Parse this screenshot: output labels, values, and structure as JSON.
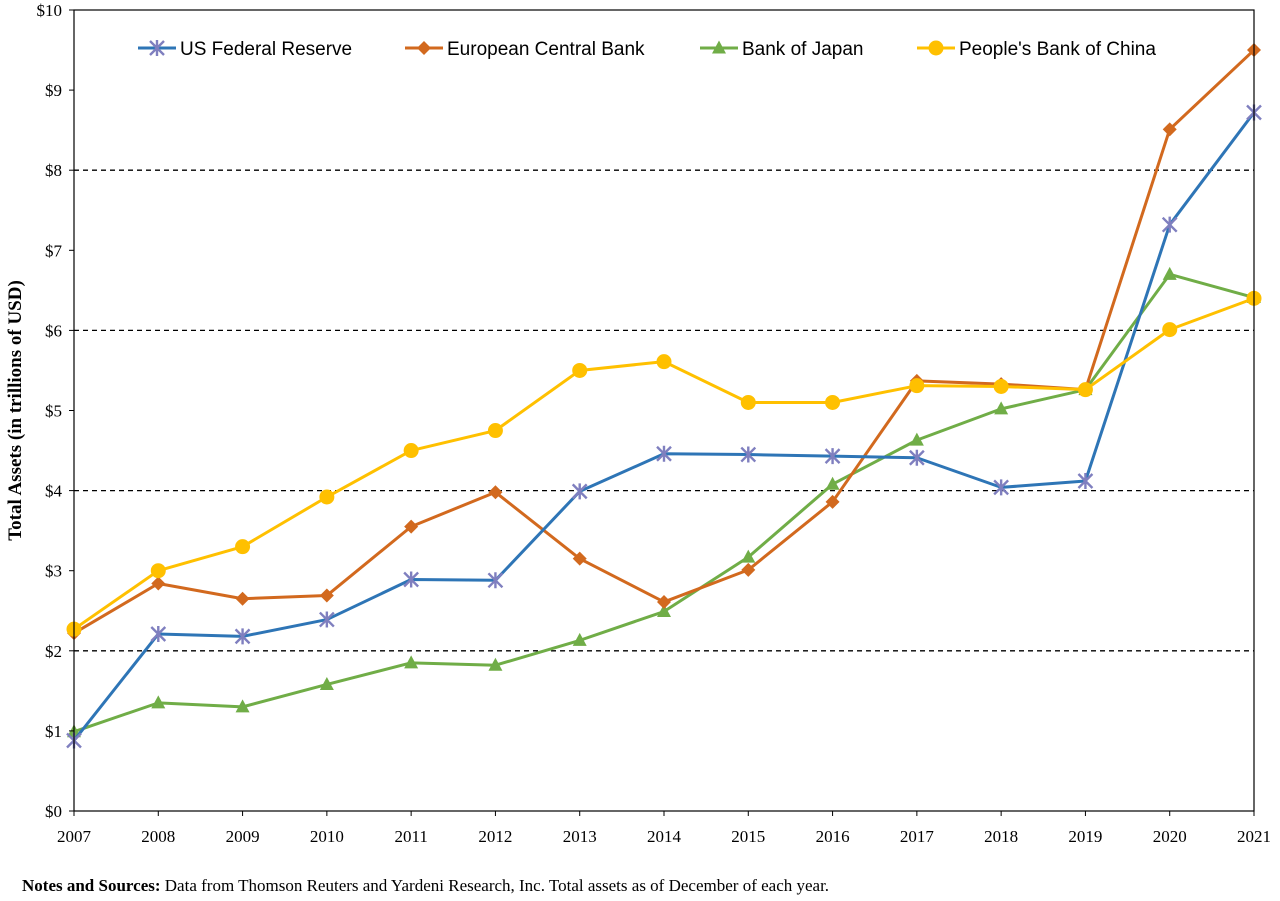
{
  "chart_data": {
    "type": "line",
    "title": "",
    "xlabel": "",
    "ylabel": "Total Assets (in trillions of USD)",
    "x": [
      "2007",
      "2008",
      "2009",
      "2010",
      "2011",
      "2012",
      "2013",
      "2014",
      "2015",
      "2016",
      "2017",
      "2018",
      "2019",
      "2020",
      "2021"
    ],
    "ylim": [
      0,
      10
    ],
    "yticks": [
      "$0",
      "$1",
      "$2",
      "$3",
      "$4",
      "$5",
      "$6",
      "$7",
      "$8",
      "$9",
      "$10"
    ],
    "grid": {
      "dashed_lines_at": [
        2,
        4,
        6,
        8
      ]
    },
    "legend_position": "top",
    "series": [
      {
        "name": "US Federal Reserve",
        "color": "#2E75B6",
        "marker": "star",
        "values": [
          0.88,
          2.21,
          2.18,
          2.39,
          2.89,
          2.88,
          3.99,
          4.46,
          4.45,
          4.43,
          4.41,
          4.04,
          4.12,
          7.32,
          8.72
        ]
      },
      {
        "name": "European Central Bank",
        "color": "#D2691E",
        "marker": "diamond",
        "values": [
          2.22,
          2.84,
          2.65,
          2.69,
          3.55,
          3.98,
          3.15,
          2.61,
          3.01,
          3.86,
          5.37,
          5.33,
          5.26,
          8.51,
          9.5
        ]
      },
      {
        "name": "Bank of Japan",
        "color": "#70AD47",
        "marker": "triangle",
        "values": [
          0.99,
          1.35,
          1.3,
          1.58,
          1.85,
          1.82,
          2.13,
          2.49,
          3.17,
          4.08,
          4.63,
          5.02,
          5.26,
          6.7,
          6.41
        ]
      },
      {
        "name": "People's Bank of China",
        "color": "#FFC000",
        "marker": "circle",
        "values": [
          2.27,
          3.0,
          3.3,
          3.92,
          4.5,
          4.75,
          5.5,
          5.61,
          5.1,
          5.1,
          5.31,
          5.3,
          5.26,
          6.01,
          6.4
        ]
      }
    ]
  },
  "notes": {
    "label": "Notes and Sources:",
    "text": " Data from Thomson Reuters and Yardeni Research, Inc. Total assets as of December of each year."
  }
}
